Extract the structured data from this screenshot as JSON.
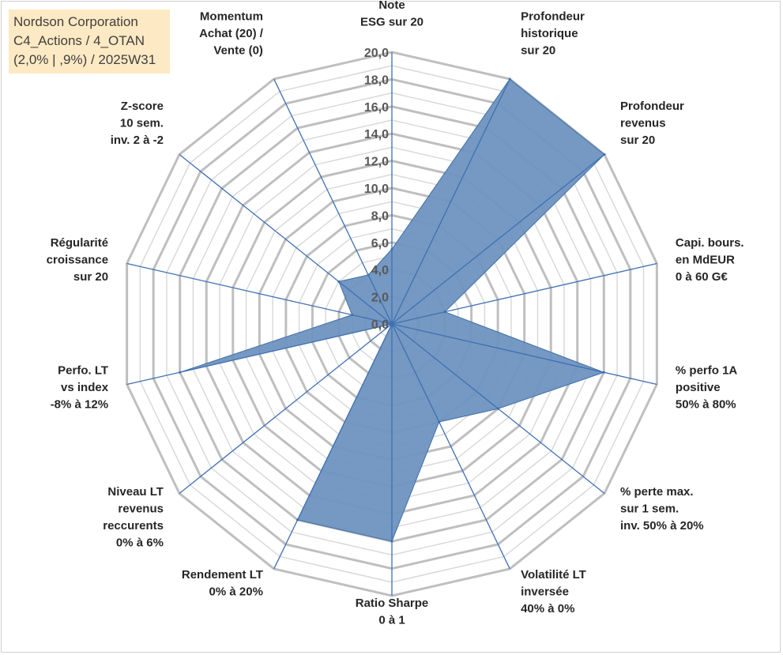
{
  "header": {
    "lines": [
      "Nordson Corporation",
      "C4_Actions / 4_OTAN",
      "(2,0% | ,9%) / 2025W31"
    ]
  },
  "colors": {
    "fill": "#6e93bf",
    "fill_stroke": "#3f6fa8",
    "spoke": "#3f6fb5",
    "grid_major": "#bfbfbf",
    "grid_minor": "#d9d9d9",
    "title_bg": "#fde9c3"
  },
  "chart_data": {
    "type": "radar",
    "title": "",
    "scale": {
      "min": 0,
      "max": 20,
      "step": 2
    },
    "tick_labels": [
      "0,0",
      "2,0",
      "4,0",
      "6,0",
      "8,0",
      "10,0",
      "12,0",
      "14,0",
      "16,0",
      "18,0",
      "20,0"
    ],
    "grid": true,
    "axes": [
      [
        "Note",
        "ESG sur 20"
      ],
      [
        "Profondeur",
        "historique",
        "sur 20"
      ],
      [
        "Profondeur",
        "revenus",
        "sur 20"
      ],
      [
        "Capi. bours.",
        "en MdEUR",
        "0 à 60 G€"
      ],
      [
        "% perfo 1A",
        "positive",
        "50% à 80%"
      ],
      [
        "% perte max.",
        "sur 1 sem.",
        "inv. 50% à 20%"
      ],
      [
        "Volatilité LT",
        "inversée",
        "40% à 0%"
      ],
      [
        "Ratio Sharpe",
        "0 à 1"
      ],
      [
        "Rendement LT",
        "0% à 20%"
      ],
      [
        "Niveau LT",
        "revenus",
        "reccurents",
        "0% à 6%"
      ],
      [
        "Perfo. LT",
        "vs index",
        "-8% à 12%"
      ],
      [
        "Régularité",
        "croissance",
        "sur 20"
      ],
      [
        "Z-score",
        "10 sem.",
        "inv. 2 à -2"
      ],
      [
        "Momentum",
        "Achat (20) /",
        "Vente (0)"
      ]
    ],
    "series": [
      {
        "values": [
          5.5,
          20.0,
          20.0,
          4.0,
          16.0,
          10.0,
          8.0,
          16.0,
          16.0,
          0.0,
          16.0,
          3.0,
          5.0,
          4.0
        ]
      }
    ]
  }
}
